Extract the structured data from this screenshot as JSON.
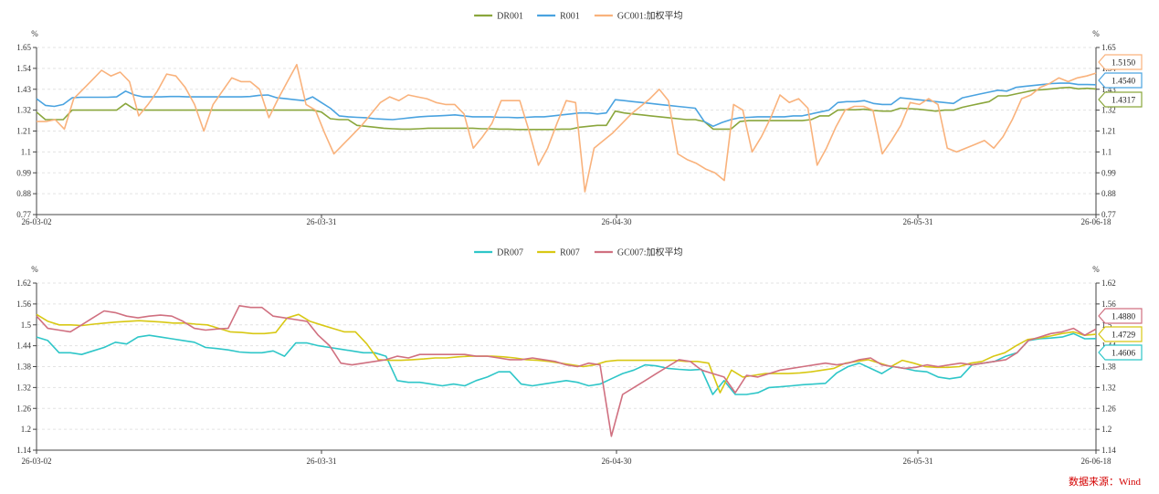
{
  "source_note": "数据来源：Wind",
  "chart_data": [
    {
      "type": "line",
      "unit_left": "%",
      "unit_right": "%",
      "ylim": [
        0.77,
        1.65
      ],
      "yticks": [
        "0.77",
        "0.88",
        "0.99",
        "1.1",
        "1.21",
        "1.32",
        "1.43",
        "1.54",
        "1.65"
      ],
      "xlabels": [
        "26-03-02",
        "26-03-31",
        "26-04-30",
        "26-05-31",
        "26-06-18"
      ],
      "grid": true,
      "legend_position": "top-center",
      "end_labels": [
        "1.5150",
        "1.4540",
        "1.4317"
      ],
      "series": [
        {
          "name": "DR001",
          "color": "#8aa63c",
          "values": [
            1.31,
            1.27,
            1.27,
            1.27,
            1.32,
            1.32,
            1.32,
            1.32,
            1.32,
            1.32,
            1.355,
            1.325,
            1.32,
            1.32,
            1.32,
            1.32,
            1.32,
            1.32,
            1.32,
            1.32,
            1.32,
            1.32,
            1.32,
            1.32,
            1.32,
            1.32,
            1.32,
            1.32,
            1.32,
            1.32,
            1.32,
            1.32,
            1.31,
            1.275,
            1.27,
            1.27,
            1.24,
            1.235,
            1.23,
            1.225,
            1.222,
            1.22,
            1.22,
            1.222,
            1.225,
            1.225,
            1.225,
            1.225,
            1.225,
            1.225,
            1.222,
            1.222,
            1.22,
            1.22,
            1.218,
            1.218,
            1.218,
            1.218,
            1.218,
            1.22,
            1.22,
            1.23,
            1.235,
            1.24,
            1.24,
            1.315,
            1.305,
            1.3,
            1.295,
            1.29,
            1.285,
            1.28,
            1.275,
            1.27,
            1.27,
            1.26,
            1.22,
            1.22,
            1.22,
            1.26,
            1.265,
            1.265,
            1.265,
            1.265,
            1.265,
            1.265,
            1.265,
            1.27,
            1.29,
            1.29,
            1.32,
            1.322,
            1.322,
            1.325,
            1.318,
            1.315,
            1.315,
            1.33,
            1.328,
            1.325,
            1.32,
            1.315,
            1.32,
            1.32,
            1.335,
            1.345,
            1.355,
            1.365,
            1.395,
            1.395,
            1.405,
            1.415,
            1.425,
            1.428,
            1.432,
            1.437,
            1.44,
            1.432,
            1.435,
            1.4317
          ]
        },
        {
          "name": "R001",
          "color": "#4aa3e0",
          "values": [
            1.38,
            1.345,
            1.34,
            1.35,
            1.385,
            1.388,
            1.388,
            1.388,
            1.388,
            1.39,
            1.42,
            1.4,
            1.39,
            1.39,
            1.39,
            1.392,
            1.392,
            1.39,
            1.39,
            1.39,
            1.39,
            1.39,
            1.39,
            1.39,
            1.392,
            1.398,
            1.4,
            1.385,
            1.38,
            1.375,
            1.37,
            1.39,
            1.36,
            1.33,
            1.29,
            1.285,
            1.282,
            1.28,
            1.275,
            1.272,
            1.27,
            1.275,
            1.28,
            1.285,
            1.288,
            1.29,
            1.292,
            1.295,
            1.29,
            1.285,
            1.285,
            1.285,
            1.282,
            1.282,
            1.28,
            1.282,
            1.285,
            1.285,
            1.29,
            1.295,
            1.3,
            1.305,
            1.305,
            1.3,
            1.305,
            1.375,
            1.37,
            1.365,
            1.36,
            1.355,
            1.35,
            1.345,
            1.34,
            1.335,
            1.33,
            1.26,
            1.235,
            1.255,
            1.27,
            1.28,
            1.282,
            1.285,
            1.285,
            1.285,
            1.285,
            1.29,
            1.29,
            1.3,
            1.31,
            1.32,
            1.36,
            1.365,
            1.365,
            1.37,
            1.355,
            1.35,
            1.35,
            1.385,
            1.38,
            1.375,
            1.37,
            1.365,
            1.36,
            1.355,
            1.385,
            1.395,
            1.405,
            1.415,
            1.425,
            1.42,
            1.44,
            1.445,
            1.45,
            1.455,
            1.46,
            1.462,
            1.462,
            1.455,
            1.455,
            1.454
          ]
        },
        {
          "name": "GC001:加权平均",
          "color": "#f9b27c",
          "values": [
            1.26,
            1.26,
            1.27,
            1.22,
            1.38,
            1.43,
            1.48,
            1.53,
            1.5,
            1.52,
            1.47,
            1.29,
            1.35,
            1.42,
            1.51,
            1.5,
            1.44,
            1.35,
            1.21,
            1.35,
            1.42,
            1.49,
            1.47,
            1.47,
            1.43,
            1.28,
            1.38,
            1.47,
            1.56,
            1.35,
            1.32,
            1.2,
            1.09,
            1.14,
            1.19,
            1.24,
            1.3,
            1.36,
            1.39,
            1.37,
            1.4,
            1.39,
            1.38,
            1.36,
            1.35,
            1.35,
            1.3,
            1.12,
            1.18,
            1.25,
            1.37,
            1.37,
            1.37,
            1.21,
            1.03,
            1.12,
            1.25,
            1.37,
            1.36,
            0.89,
            1.12,
            1.16,
            1.2,
            1.25,
            1.3,
            1.34,
            1.38,
            1.43,
            1.37,
            1.09,
            1.06,
            1.04,
            1.01,
            0.99,
            0.95,
            1.35,
            1.32,
            1.1,
            1.18,
            1.28,
            1.4,
            1.36,
            1.38,
            1.33,
            1.03,
            1.12,
            1.23,
            1.32,
            1.34,
            1.34,
            1.32,
            1.09,
            1.16,
            1.24,
            1.36,
            1.35,
            1.38,
            1.35,
            1.12,
            1.1,
            1.12,
            1.14,
            1.16,
            1.12,
            1.18,
            1.27,
            1.38,
            1.4,
            1.44,
            1.46,
            1.49,
            1.47,
            1.49,
            1.5,
            1.515
          ]
        }
      ]
    },
    {
      "type": "line",
      "unit_left": "%",
      "unit_right": "%",
      "ylim": [
        1.14,
        1.62
      ],
      "yticks": [
        "1.14",
        "1.2",
        "1.26",
        "1.32",
        "1.38",
        "1.44",
        "1.5",
        "1.56",
        "1.62"
      ],
      "xlabels": [
        "26-03-02",
        "26-03-31",
        "26-04-30",
        "26-05-31",
        "26-06-18"
      ],
      "grid": true,
      "legend_position": "top-center",
      "end_labels": [
        "1.4880",
        "1.4729",
        "1.4606"
      ],
      "series": [
        {
          "name": "DR007",
          "color": "#2ec6c8",
          "values": [
            1.465,
            1.455,
            1.42,
            1.42,
            1.415,
            1.425,
            1.435,
            1.45,
            1.445,
            1.465,
            1.47,
            1.465,
            1.46,
            1.455,
            1.45,
            1.435,
            1.432,
            1.428,
            1.422,
            1.42,
            1.42,
            1.425,
            1.41,
            1.448,
            1.448,
            1.44,
            1.435,
            1.43,
            1.425,
            1.42,
            1.42,
            1.41,
            1.34,
            1.335,
            1.335,
            1.33,
            1.325,
            1.33,
            1.325,
            1.34,
            1.35,
            1.365,
            1.365,
            1.33,
            1.325,
            1.33,
            1.335,
            1.34,
            1.335,
            1.325,
            1.33,
            1.345,
            1.36,
            1.37,
            1.385,
            1.382,
            1.375,
            1.372,
            1.37,
            1.372,
            1.3,
            1.34,
            1.3,
            1.3,
            1.305,
            1.32,
            1.322,
            1.325,
            1.328,
            1.33,
            1.332,
            1.362,
            1.38,
            1.39,
            1.375,
            1.36,
            1.38,
            1.375,
            1.368,
            1.365,
            1.35,
            1.345,
            1.35,
            1.385,
            1.39,
            1.395,
            1.41,
            1.42,
            1.455,
            1.46,
            1.462,
            1.465,
            1.475,
            1.46,
            1.4606
          ]
        },
        {
          "name": "R007",
          "color": "#d8c814",
          "values": [
            1.53,
            1.51,
            1.5,
            1.5,
            1.498,
            1.502,
            1.505,
            1.508,
            1.51,
            1.512,
            1.51,
            1.508,
            1.505,
            1.505,
            1.502,
            1.5,
            1.49,
            1.48,
            1.478,
            1.475,
            1.475,
            1.478,
            1.52,
            1.53,
            1.51,
            1.5,
            1.49,
            1.48,
            1.48,
            1.445,
            1.4,
            1.398,
            1.398,
            1.4,
            1.402,
            1.405,
            1.405,
            1.408,
            1.41,
            1.41,
            1.41,
            1.408,
            1.405,
            1.4,
            1.398,
            1.395,
            1.39,
            1.385,
            1.38,
            1.385,
            1.395,
            1.398,
            1.398,
            1.398,
            1.398,
            1.398,
            1.398,
            1.395,
            1.395,
            1.39,
            1.305,
            1.37,
            1.35,
            1.355,
            1.36,
            1.36,
            1.36,
            1.362,
            1.365,
            1.37,
            1.375,
            1.39,
            1.395,
            1.4,
            1.39,
            1.38,
            1.398,
            1.39,
            1.38,
            1.378,
            1.378,
            1.38,
            1.39,
            1.395,
            1.41,
            1.42,
            1.44,
            1.458,
            1.462,
            1.468,
            1.475,
            1.48,
            1.47,
            1.4729
          ]
        },
        {
          "name": "GC007:加权平均",
          "color": "#d07080",
          "values": [
            1.525,
            1.49,
            1.485,
            1.48,
            1.5,
            1.52,
            1.54,
            1.535,
            1.525,
            1.52,
            1.525,
            1.528,
            1.525,
            1.51,
            1.49,
            1.485,
            1.488,
            1.49,
            1.555,
            1.55,
            1.55,
            1.525,
            1.52,
            1.515,
            1.51,
            1.47,
            1.44,
            1.39,
            1.385,
            1.39,
            1.395,
            1.4,
            1.41,
            1.405,
            1.415,
            1.415,
            1.415,
            1.415,
            1.415,
            1.41,
            1.41,
            1.405,
            1.4,
            1.4,
            1.405,
            1.4,
            1.395,
            1.385,
            1.38,
            1.39,
            1.385,
            1.18,
            1.3,
            1.32,
            1.34,
            1.36,
            1.38,
            1.4,
            1.395,
            1.37,
            1.36,
            1.35,
            1.305,
            1.355,
            1.35,
            1.36,
            1.37,
            1.375,
            1.38,
            1.385,
            1.39,
            1.385,
            1.39,
            1.4,
            1.405,
            1.385,
            1.38,
            1.375,
            1.378,
            1.385,
            1.38,
            1.385,
            1.39,
            1.385,
            1.39,
            1.395,
            1.4,
            1.42,
            1.455,
            1.465,
            1.475,
            1.48,
            1.49,
            1.47,
            1.488
          ]
        }
      ]
    }
  ]
}
